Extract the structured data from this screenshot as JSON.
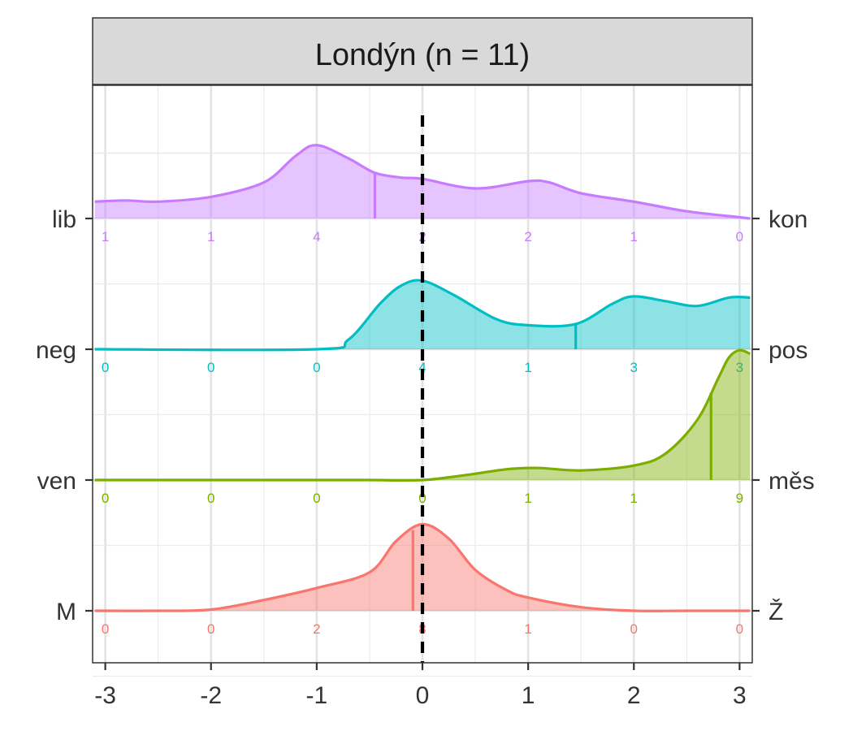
{
  "chart_data": {
    "type": "ridgeline-density",
    "panel_title": "Londýn (n = 11)",
    "xlim": [
      -3,
      3
    ],
    "x_ticks": [
      "-3",
      "-2",
      "-1",
      "0",
      "1",
      "2",
      "3"
    ],
    "x_tick_values": [
      -3,
      -2,
      -1,
      0,
      1,
      2,
      3
    ],
    "reference_line_x": 0,
    "count_positions": [
      -3,
      -2,
      -1,
      0,
      1,
      2,
      3
    ],
    "grid": true,
    "rows": [
      {
        "left_label": "M",
        "right_label": "Ž",
        "color": "#F8766D",
        "mean": -0.09,
        "counts": [
          "0",
          "0",
          "2",
          "8",
          "1",
          "0",
          "0"
        ],
        "density": [
          [
            -3.1,
            0.0
          ],
          [
            -2.5,
            0.0
          ],
          [
            -2.0,
            0.01
          ],
          [
            -1.5,
            0.09
          ],
          [
            -1.0,
            0.19
          ],
          [
            -0.5,
            0.32
          ],
          [
            -0.25,
            0.58
          ],
          [
            0.0,
            0.72
          ],
          [
            0.25,
            0.6
          ],
          [
            0.5,
            0.34
          ],
          [
            0.8,
            0.17
          ],
          [
            1.0,
            0.11
          ],
          [
            1.5,
            0.03
          ],
          [
            2.0,
            0.0
          ],
          [
            2.5,
            0.0
          ],
          [
            3.1,
            0.0
          ]
        ]
      },
      {
        "left_label": "ven",
        "right_label": "měs",
        "color": "#7CAE00",
        "mean": 2.73,
        "counts": [
          "0",
          "0",
          "0",
          "0",
          "1",
          "1",
          "9"
        ],
        "density": [
          [
            -3.1,
            0.0
          ],
          [
            -1.0,
            0.0
          ],
          [
            -0.5,
            0.0
          ],
          [
            0.0,
            0.0
          ],
          [
            0.4,
            0.04
          ],
          [
            0.8,
            0.09
          ],
          [
            1.1,
            0.1
          ],
          [
            1.5,
            0.08
          ],
          [
            2.0,
            0.12
          ],
          [
            2.3,
            0.22
          ],
          [
            2.6,
            0.5
          ],
          [
            2.8,
            0.85
          ],
          [
            2.9,
            1.02
          ],
          [
            3.0,
            1.08
          ],
          [
            3.1,
            1.05
          ]
        ]
      },
      {
        "left_label": "neg",
        "right_label": "pos",
        "color": "#00BFC4",
        "mean": 1.45,
        "counts": [
          "0",
          "0",
          "0",
          "4",
          "1",
          "3",
          "3"
        ],
        "density": [
          [
            -3.1,
            0.0
          ],
          [
            -1.0,
            0.0
          ],
          [
            -0.7,
            0.08
          ],
          [
            -0.4,
            0.38
          ],
          [
            -0.2,
            0.53
          ],
          [
            0.0,
            0.57
          ],
          [
            0.3,
            0.45
          ],
          [
            0.7,
            0.25
          ],
          [
            1.0,
            0.2
          ],
          [
            1.45,
            0.21
          ],
          [
            1.8,
            0.38
          ],
          [
            2.0,
            0.44
          ],
          [
            2.3,
            0.4
          ],
          [
            2.6,
            0.36
          ],
          [
            2.9,
            0.43
          ],
          [
            3.1,
            0.43
          ]
        ]
      },
      {
        "left_label": "lib",
        "right_label": "kon",
        "color": "#C77CFF",
        "mean": -0.45,
        "counts": [
          "1",
          "1",
          "4",
          "2",
          "2",
          "1",
          "0"
        ],
        "density": [
          [
            -3.1,
            0.14
          ],
          [
            -2.8,
            0.15
          ],
          [
            -2.5,
            0.14
          ],
          [
            -2.0,
            0.18
          ],
          [
            -1.5,
            0.3
          ],
          [
            -1.2,
            0.52
          ],
          [
            -1.0,
            0.61
          ],
          [
            -0.7,
            0.5
          ],
          [
            -0.45,
            0.38
          ],
          [
            -0.2,
            0.34
          ],
          [
            0.0,
            0.33
          ],
          [
            0.5,
            0.25
          ],
          [
            1.0,
            0.31
          ],
          [
            1.2,
            0.3
          ],
          [
            1.5,
            0.21
          ],
          [
            2.0,
            0.14
          ],
          [
            2.5,
            0.06
          ],
          [
            3.0,
            0.01
          ],
          [
            3.1,
            0.0
          ]
        ]
      }
    ]
  }
}
